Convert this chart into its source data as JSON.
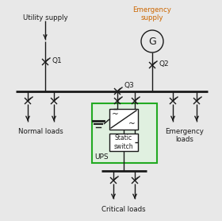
{
  "bg_color": "#e8e8e8",
  "line_color": "#1a1a1a",
  "green_box_color": "#22aa22",
  "green_box_fill": "#e0f0e0",
  "orange_text": "#cc6600",
  "utility_text": "Utility supply",
  "emergency_text": "Emergency\nsupply",
  "q1_text": "Q1",
  "q2_text": "Q2",
  "q3_text": "Q3",
  "normal_loads_text": "Normal loads",
  "emergency_loads_text": "Emergency\nloads",
  "critical_loads_text": "Critical loads",
  "ups_text": "UPS",
  "static_switch_text": "Static\nswitch"
}
